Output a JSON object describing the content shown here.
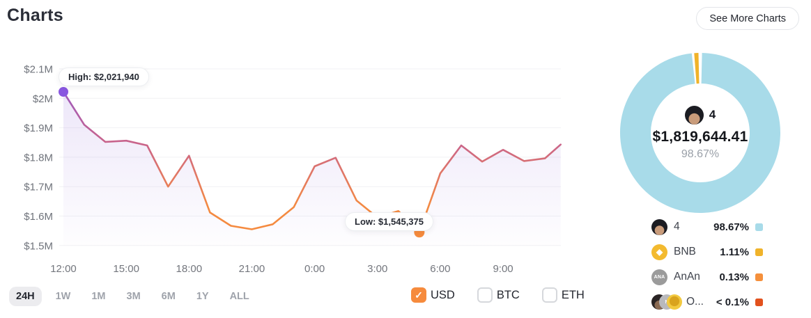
{
  "header": {
    "title": "Charts",
    "see_more_label": "See More Charts"
  },
  "chart_data": [
    {
      "type": "line",
      "x": [
        "12:00",
        "13:00",
        "14:00",
        "15:00",
        "16:00",
        "17:00",
        "18:00",
        "19:00",
        "20:00",
        "21:00",
        "22:00",
        "23:00",
        "0:00",
        "1:00",
        "2:00",
        "3:00",
        "4:00",
        "5:00",
        "6:00",
        "7:00",
        "8:00",
        "9:00",
        "10:00",
        "11:00",
        "11:45"
      ],
      "values_musd": [
        2.022,
        1.91,
        1.852,
        1.856,
        1.84,
        1.7,
        1.805,
        1.612,
        1.567,
        1.555,
        1.572,
        1.63,
        1.769,
        1.798,
        1.653,
        1.595,
        1.617,
        1.545,
        1.745,
        1.84,
        1.785,
        1.825,
        1.787,
        1.796,
        1.843
      ],
      "x_ticks": [
        "12:00",
        "15:00",
        "18:00",
        "21:00",
        "0:00",
        "3:00",
        "6:00",
        "9:00"
      ],
      "y_ticks": [
        {
          "label": "$2.1M",
          "value": 2.1
        },
        {
          "label": "$2M",
          "value": 2.0
        },
        {
          "label": "$1.9M",
          "value": 1.9
        },
        {
          "label": "$1.8M",
          "value": 1.8
        },
        {
          "label": "$1.7M",
          "value": 1.7
        },
        {
          "label": "$1.6M",
          "value": 1.6
        },
        {
          "label": "$1.5M",
          "value": 1.5
        }
      ],
      "ylim": [
        1.5,
        2.1
      ],
      "grid": "horizontal",
      "legend": "none",
      "high_label": "High: $2,021,940",
      "low_label": "Low: $1,545,375",
      "high_value": 2021940,
      "low_value": 1545375,
      "colors": {
        "line_top": "#8a55d7",
        "line_mid": "#c9648b",
        "line_bottom": "#f78b3c",
        "high_dot": "#8957e0",
        "low_dot": "#f68b3d",
        "grid": "#f1f1f4"
      }
    },
    {
      "type": "pie",
      "center": {
        "holder_label": "4",
        "amount": "$1,819,644.41",
        "percent": "98.67%"
      },
      "slices": [
        {
          "label": "4",
          "pct": 98.67,
          "display": "98.67%",
          "color": "#a8dbe9",
          "icon": "avatar"
        },
        {
          "label": "BNB",
          "pct": 1.11,
          "display": "1.11%",
          "color": "#f0b32a",
          "icon": "bnb",
          "icon_text": "◆"
        },
        {
          "label": "AnAn",
          "pct": 0.13,
          "display": "0.13%",
          "color": "#f5903c",
          "icon": "ana",
          "icon_text": "ANA"
        },
        {
          "label": "O...",
          "pct": 0.09,
          "display": "< 0.1%",
          "color": "#e2511d",
          "icon": "group",
          "icon_text": "N"
        }
      ],
      "legend_position": "bottom"
    }
  ],
  "time_ranges": {
    "active": "24H",
    "options": [
      "24H",
      "1W",
      "1M",
      "3M",
      "6M",
      "1Y",
      "ALL"
    ]
  },
  "currencies": [
    {
      "label": "USD",
      "checked": true
    },
    {
      "label": "BTC",
      "checked": false
    },
    {
      "label": "ETH",
      "checked": false
    }
  ]
}
